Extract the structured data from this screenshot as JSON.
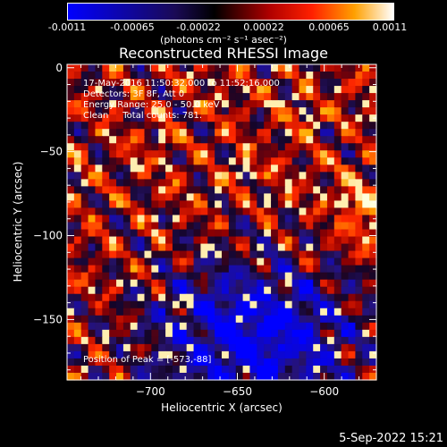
{
  "colorbar": {
    "ticks": [
      "-0.0011",
      "-0.00065",
      "-0.00022",
      "0.00022",
      "0.00065",
      "0.0011"
    ],
    "units": "(photons cm⁻² s⁻¹ asec⁻²)",
    "colors": [
      "#0000ff",
      "#000000",
      "#ff0000",
      "#ffa000",
      "#ffffff"
    ]
  },
  "chart_data": {
    "type": "heatmap",
    "title": "Reconstructed RHESSI Image",
    "xlabel": "Heliocentric X (arcsec)",
    "ylabel": "Heliocentric Y (arcsec)",
    "xlim": [
      -748,
      -570
    ],
    "ylim": [
      -186,
      2
    ],
    "xticks": [
      -700,
      -650,
      -600
    ],
    "yticks": [
      0,
      -50,
      -100,
      -150
    ],
    "value_range": [
      -0.0011,
      0.0011
    ],
    "peak_position": [
      -573,
      -88
    ],
    "annotations": [
      "17-May-2016 11:50:32.000 to 11:52:16.000",
      "Detectors: 3F 8F, Att 0",
      "Energy Range: 25.0 - 50.0 keV",
      "Clean     Total counts: 781.",
      "Position of Peak = [-573,-88]"
    ]
  },
  "footer": {
    "timestamp": "5-Sep-2022 15:21"
  }
}
